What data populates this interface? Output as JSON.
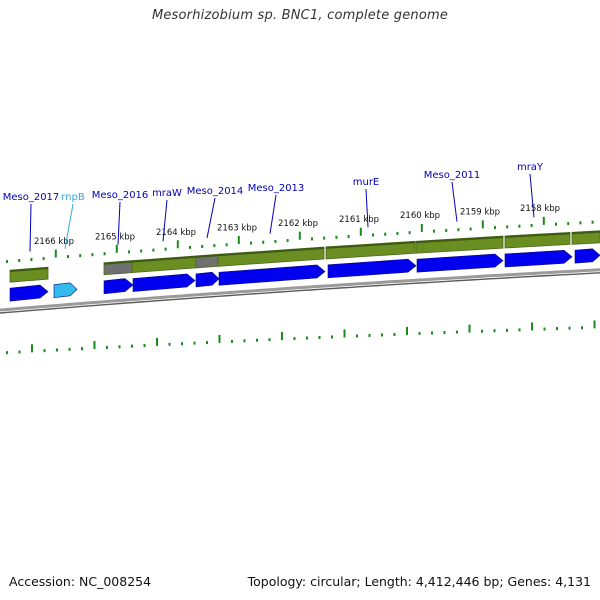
{
  "title": "Mesorhizobium sp. BNC1, complete genome",
  "footer": {
    "accession": "Accession: NC_008254",
    "summary": "Topology: circular; Length: 4,412,446 bp; Genes: 4,131"
  },
  "colors": {
    "gene_arrow": "#0000ee",
    "rnpB_arrow": "#33bbee",
    "gene_band": "#6b8e23",
    "gene_band_dark": "#4a6a1b",
    "gray_segment": "#707070",
    "tick": "#1a8a1a",
    "label_blue": "#0000bb",
    "label_cyan": "#33aadd",
    "backbone": "#888888"
  },
  "kbp_ticks": [
    "2166 kbp",
    "2165 kbp",
    "2164 kbp",
    "2163 kbp",
    "2162 kbp",
    "2161 kbp",
    "2160 kbp",
    "2159 kbp",
    "2158 kbp"
  ],
  "genes": [
    {
      "name": "Meso_2017",
      "type": "protein"
    },
    {
      "name": "rnpB",
      "type": "rna"
    },
    {
      "name": "Meso_2016",
      "type": "protein"
    },
    {
      "name": "mraW",
      "type": "protein"
    },
    {
      "name": "Meso_2014",
      "type": "protein"
    },
    {
      "name": "Meso_2013",
      "type": "protein"
    },
    {
      "name": "murE",
      "type": "protein"
    },
    {
      "name": "Meso_2011",
      "type": "protein"
    },
    {
      "name": "mraY",
      "type": "protein"
    }
  ]
}
